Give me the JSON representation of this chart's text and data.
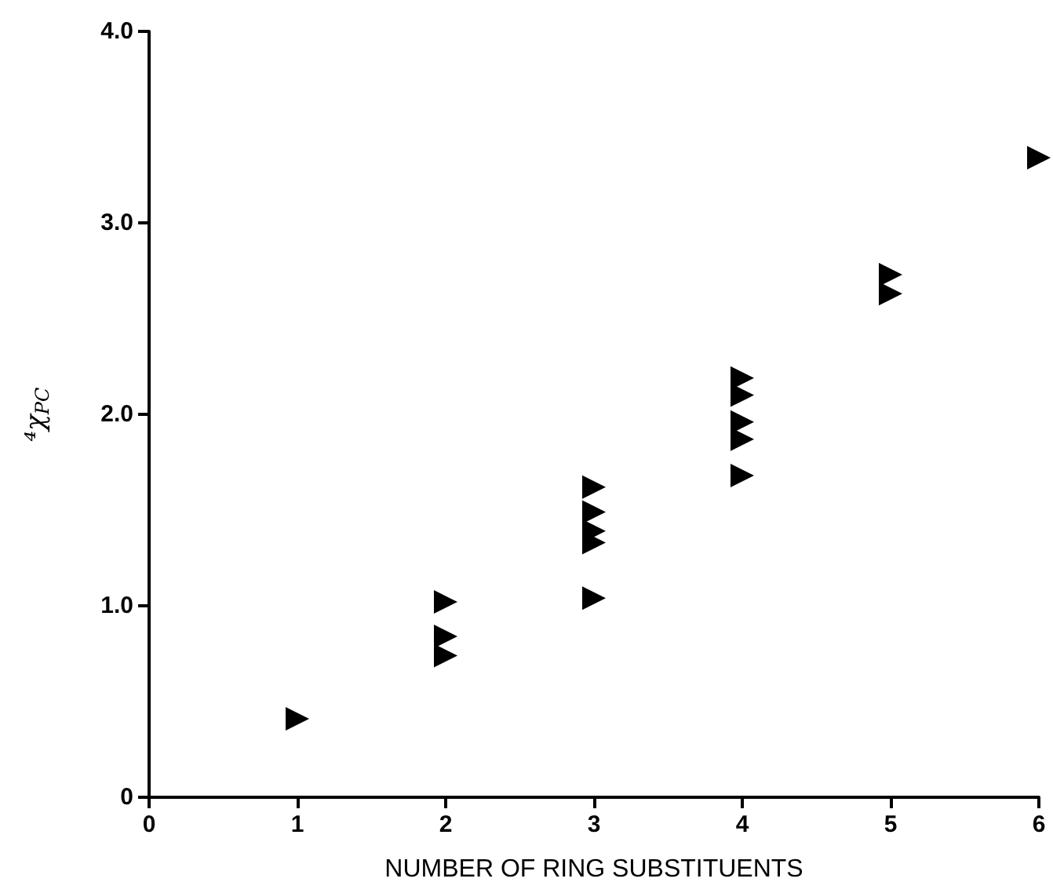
{
  "chart_data": {
    "type": "scatter",
    "xlabel": "NUMBER OF RING SUBSTITUENTS",
    "ylabel": "⁴χ$_{PC}$",
    "x": [
      1,
      2,
      2,
      2,
      3,
      3,
      3,
      3,
      3,
      4,
      4,
      4,
      4,
      4,
      5,
      5,
      6
    ],
    "values": [
      0.41,
      1.02,
      0.84,
      0.74,
      1.62,
      1.49,
      1.39,
      1.33,
      1.04,
      2.19,
      2.1,
      1.96,
      1.87,
      1.68,
      2.73,
      2.63,
      3.34
    ],
    "color": "#000000",
    "marker": "triangle",
    "xlim": [
      0,
      6
    ],
    "xticks": [
      0,
      1,
      2,
      3,
      4,
      5,
      6
    ],
    "ylim": [
      0,
      4
    ],
    "yticks": [
      0,
      {
        "value": 1,
        "label": "1.0"
      },
      {
        "value": 2,
        "label": "2.0"
      },
      {
        "value": 3,
        "label": "3.0"
      },
      {
        "value": 4,
        "label": "4.0"
      }
    ],
    "grid": false
  }
}
